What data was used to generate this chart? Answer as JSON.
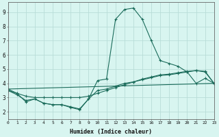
{
  "xlabel": "Humidex (Indice chaleur)",
  "xlim": [
    0,
    23
  ],
  "ylim": [
    1.5,
    9.7
  ],
  "yticks": [
    2,
    3,
    4,
    5,
    6,
    7,
    8,
    9
  ],
  "xticks": [
    0,
    1,
    2,
    3,
    4,
    5,
    6,
    7,
    8,
    9,
    10,
    11,
    12,
    13,
    14,
    15,
    16,
    17,
    18,
    19,
    20,
    21,
    22,
    23
  ],
  "bg_color": "#d8f5f0",
  "grid_color": "#b8ddd8",
  "line_color": "#1a6b5a",
  "main_curve": {
    "x": [
      0,
      1,
      2,
      3,
      4,
      5,
      6,
      7,
      8,
      9,
      10,
      11,
      12,
      13,
      14,
      15,
      16,
      17,
      18,
      19,
      20,
      21,
      22,
      23
    ],
    "y": [
      3.6,
      3.3,
      2.7,
      2.9,
      2.6,
      2.5,
      2.5,
      2.3,
      2.15,
      2.9,
      4.2,
      4.3,
      8.5,
      9.2,
      9.3,
      8.5,
      7.0,
      5.6,
      5.4,
      5.2,
      4.8,
      4.0,
      4.35,
      4.0
    ]
  },
  "trend_line1": {
    "x": [
      0,
      1,
      2,
      3,
      4,
      5,
      6,
      7,
      8,
      9,
      10,
      11,
      12,
      13,
      14,
      15,
      16,
      17,
      18,
      19,
      20,
      21,
      22,
      23
    ],
    "y": [
      3.5,
      3.3,
      3.1,
      3.0,
      3.0,
      3.0,
      3.0,
      3.0,
      3.0,
      3.1,
      3.3,
      3.5,
      3.7,
      3.9,
      4.1,
      4.3,
      4.45,
      4.6,
      4.65,
      4.75,
      4.85,
      4.9,
      4.85,
      4.0
    ]
  },
  "straight_line": {
    "x": [
      0,
      23
    ],
    "y": [
      3.6,
      4.0
    ]
  },
  "bottom_curve": {
    "x": [
      0,
      1,
      2,
      3,
      4,
      5,
      6,
      7,
      8,
      9,
      10,
      11,
      12,
      13,
      14,
      15,
      16,
      17,
      18,
      19,
      20,
      21,
      22,
      23
    ],
    "y": [
      3.5,
      3.2,
      2.8,
      2.9,
      2.6,
      2.5,
      2.5,
      2.35,
      2.2,
      2.9,
      3.5,
      3.6,
      3.8,
      4.0,
      4.1,
      4.25,
      4.4,
      4.55,
      4.6,
      4.7,
      4.8,
      4.9,
      4.8,
      4.0
    ]
  }
}
